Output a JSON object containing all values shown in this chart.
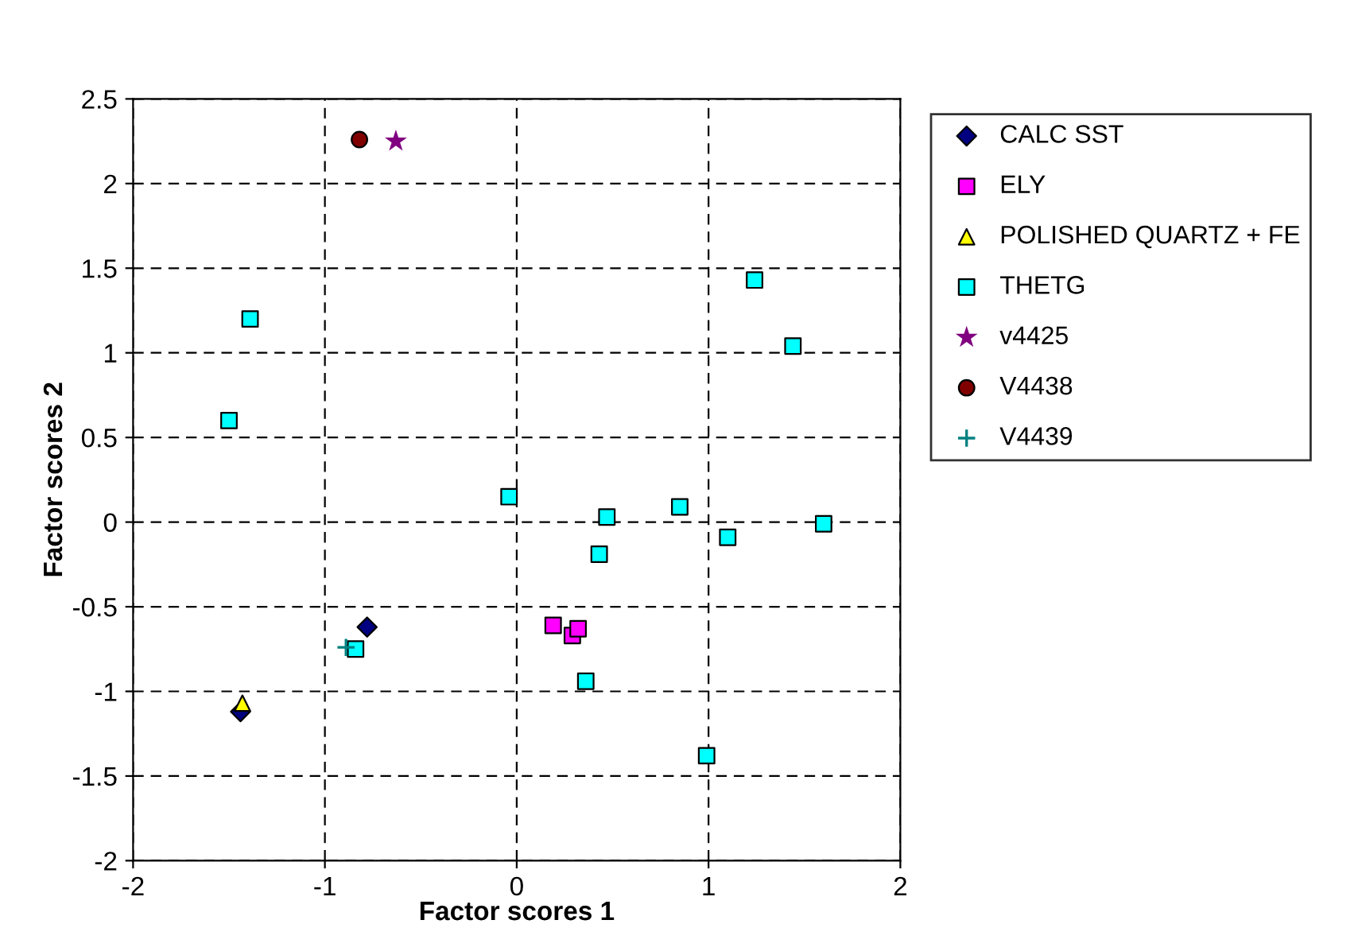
{
  "chart_data": {
    "type": "scatter",
    "xlabel": "Factor scores 1",
    "ylabel": "Factor scores 2",
    "xlim": [
      -2,
      2
    ],
    "ylim": [
      -2,
      2.5
    ],
    "xticks": [
      -2,
      -1,
      0,
      1,
      2
    ],
    "yticks": [
      -2,
      -1.5,
      -1,
      -0.5,
      0,
      0.5,
      1,
      1.5,
      2,
      2.5
    ],
    "grid": true,
    "legend": "right",
    "series": [
      {
        "name": "CALC SST",
        "color": "#000080",
        "marker": "diamond",
        "x": [
          -1.44,
          -0.78
        ],
        "values": [
          -1.12,
          -0.62
        ]
      },
      {
        "name": "ELY",
        "color": "#ff00ff",
        "marker": "square",
        "x": [
          0.19,
          0.29,
          0.32
        ],
        "values": [
          -0.61,
          -0.67,
          -0.63
        ]
      },
      {
        "name": "POLISHED QUARTZ + FE",
        "color": "#ffff00",
        "marker": "triangle",
        "x": [
          -1.43
        ],
        "values": [
          -1.07
        ]
      },
      {
        "name": "THETG",
        "color": "#00ffff",
        "marker": "square",
        "x": [
          -1.5,
          -1.39,
          -0.04,
          0.47,
          0.43,
          0.85,
          1.1,
          1.24,
          1.44,
          1.6,
          0.36,
          0.99,
          -0.84
        ],
        "values": [
          0.6,
          1.2,
          0.15,
          0.03,
          -0.19,
          0.09,
          -0.09,
          1.43,
          1.04,
          -0.01,
          -0.94,
          -1.38,
          -0.75
        ]
      },
      {
        "name": "v4425",
        "color": "#800080",
        "marker": "star",
        "x": [
          -0.63
        ],
        "values": [
          2.25
        ]
      },
      {
        "name": "V4438",
        "color": "#800000",
        "marker": "circle",
        "x": [
          -0.82
        ],
        "values": [
          2.26
        ]
      },
      {
        "name": "V4439",
        "color": "#008080",
        "marker": "cross",
        "x": [
          -0.89
        ],
        "values": [
          -0.74
        ]
      }
    ]
  }
}
